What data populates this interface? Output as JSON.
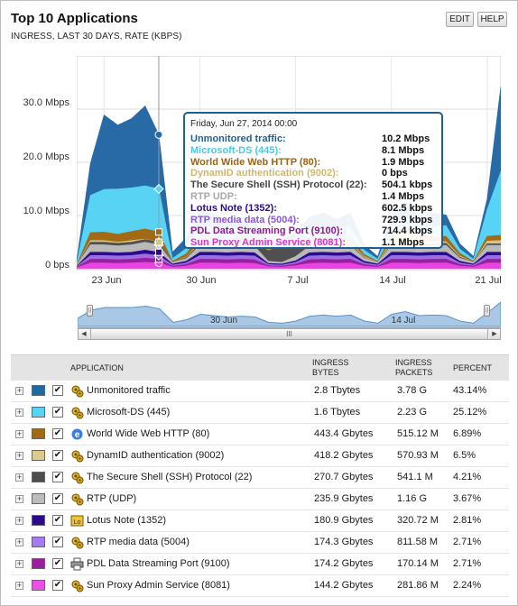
{
  "header": {
    "title": "Top 10 Applications",
    "subtitle": "INGRESS, LAST 30 DAYS, RATE (KBPS)",
    "edit_label": "EDIT",
    "help_label": "HELP"
  },
  "chart_data": {
    "type": "area",
    "stacked": true,
    "ylabel": "",
    "y_ticks": [
      "0 bps",
      "10.0 Mbps",
      "20.0 Mbps",
      "30.0 Mbps"
    ],
    "y_tick_values": [
      0,
      10,
      20,
      30
    ],
    "y_unit": "Mbps",
    "ylim": [
      0,
      40
    ],
    "x_ticks": [
      "23 Jun",
      "30 Jun",
      "7 Jul",
      "14 Jul",
      "21 Jul"
    ],
    "x_tick_days": [
      2,
      9,
      16,
      23,
      30
    ],
    "xlim_days": [
      0,
      31
    ],
    "grid": true,
    "x": [
      0,
      1,
      2,
      3,
      4,
      5,
      6,
      7,
      8,
      9,
      10,
      11,
      12,
      13,
      14,
      15,
      16,
      17,
      18,
      19,
      20,
      21,
      22,
      23,
      24,
      25,
      26,
      27,
      28,
      29,
      30,
      31
    ],
    "series": [
      {
        "name": "Sun Proxy Admin Service (8081)",
        "color": "#e844e0",
        "values": [
          0.2,
          1.1,
          1.1,
          1.0,
          1.1,
          1.2,
          1.1,
          0.3,
          0.5,
          1.1,
          1.1,
          1.0,
          1.1,
          1.0,
          0.4,
          0.3,
          0.6,
          1.0,
          1.1,
          1.0,
          1.1,
          0.5,
          0.3,
          1.1,
          1.1,
          1.0,
          1.1,
          1.1,
          0.5,
          0.3,
          1.1,
          1.1
        ]
      },
      {
        "name": "PDL Data Streaming Port (9100)",
        "color": "#9b1e9e",
        "values": [
          0.1,
          0.7,
          0.7,
          0.7,
          0.7,
          0.8,
          0.7,
          0.2,
          0.3,
          0.7,
          0.7,
          0.7,
          0.7,
          0.7,
          0.2,
          0.2,
          0.3,
          0.7,
          0.7,
          0.7,
          0.7,
          0.3,
          0.2,
          0.7,
          0.7,
          0.7,
          0.7,
          0.7,
          0.3,
          0.2,
          0.7,
          0.7
        ]
      },
      {
        "name": "RTP media data (5004)",
        "color": "#9c6ee0",
        "values": [
          0.1,
          0.7,
          0.7,
          0.7,
          0.7,
          0.8,
          0.7,
          0.2,
          0.3,
          0.7,
          0.7,
          0.7,
          0.7,
          0.7,
          0.2,
          0.2,
          0.3,
          0.7,
          0.7,
          0.7,
          0.7,
          0.3,
          0.2,
          0.7,
          0.7,
          0.7,
          0.7,
          0.7,
          0.3,
          0.2,
          0.7,
          0.7
        ]
      },
      {
        "name": "Lotus Note (1352)",
        "color": "#2c0a8c",
        "values": [
          0.1,
          0.6,
          0.6,
          0.6,
          0.6,
          0.7,
          0.6,
          0.2,
          0.3,
          0.6,
          0.6,
          0.6,
          0.6,
          0.6,
          0.2,
          0.2,
          0.3,
          0.6,
          0.6,
          0.6,
          0.6,
          0.3,
          0.2,
          0.6,
          0.6,
          0.6,
          0.6,
          0.6,
          0.3,
          0.2,
          0.6,
          0.6
        ]
      },
      {
        "name": "RTP UDP",
        "color": "#b9b9b9",
        "values": [
          0.2,
          1.4,
          1.4,
          1.3,
          1.4,
          1.5,
          1.4,
          0.3,
          0.5,
          1.3,
          1.3,
          1.2,
          1.3,
          1.2,
          0.4,
          0.3,
          0.8,
          1.2,
          1.3,
          1.2,
          1.3,
          0.6,
          0.3,
          1.3,
          1.3,
          1.2,
          1.3,
          1.3,
          0.6,
          0.3,
          1.3,
          1.3
        ]
      },
      {
        "name": "The Secure Shell (SSH) Protocol (22)",
        "color": "#505050",
        "values": [
          0.0,
          0.5,
          0.5,
          0.5,
          0.5,
          0.5,
          0.5,
          0.0,
          0.2,
          0.3,
          0.2,
          0.2,
          0.3,
          0.8,
          2.0,
          3.2,
          2.2,
          0.4,
          0.3,
          0.2,
          0.3,
          0.1,
          0.0,
          0.3,
          0.3,
          0.2,
          0.3,
          0.4,
          0.2,
          0.0,
          0.3,
          0.3
        ]
      },
      {
        "name": "DynamID authentication (9002)",
        "color": "#d9c47f",
        "values": [
          0.0,
          0.3,
          0.3,
          0.2,
          0.3,
          0.1,
          0.0,
          0.0,
          0.1,
          0.3,
          0.3,
          0.2,
          0.3,
          0.3,
          0.1,
          0.0,
          0.1,
          0.3,
          0.3,
          0.2,
          0.3,
          0.2,
          0.0,
          0.5,
          2.5,
          1.0,
          0.4,
          0.3,
          0.2,
          0.0,
          0.5,
          0.6
        ]
      },
      {
        "name": "World Wide Web HTTP (80)",
        "color": "#a26a13",
        "values": [
          0.0,
          1.5,
          1.6,
          1.5,
          1.7,
          1.9,
          1.9,
          0.2,
          0.6,
          1.0,
          0.9,
          0.8,
          0.9,
          0.8,
          0.3,
          0.2,
          0.5,
          0.9,
          1.0,
          0.9,
          1.0,
          0.4,
          0.2,
          0.8,
          0.9,
          0.8,
          0.9,
          1.0,
          0.5,
          0.2,
          0.9,
          1.0
        ]
      },
      {
        "name": "Microsoft-DS (445)",
        "color": "#58d3f3",
        "values": [
          0.3,
          7.0,
          8.0,
          8.5,
          8.2,
          8.1,
          8.1,
          0.5,
          1.0,
          2.0,
          2.0,
          1.7,
          1.8,
          1.5,
          0.5,
          0.4,
          0.8,
          1.8,
          2.0,
          1.8,
          2.0,
          0.8,
          0.4,
          2.0,
          2.0,
          1.8,
          2.0,
          2.0,
          0.8,
          0.4,
          5.0,
          12.0
        ]
      },
      {
        "name": "Unmonitored traffic",
        "color": "#276aa6",
        "values": [
          0.5,
          6.0,
          14.0,
          12.0,
          13.0,
          15.0,
          10.2,
          1.2,
          2.0,
          3.0,
          2.5,
          2.0,
          2.0,
          1.7,
          0.5,
          0.4,
          1.0,
          2.0,
          2.5,
          2.0,
          2.5,
          1.0,
          0.5,
          2.0,
          2.5,
          2.0,
          2.5,
          2.0,
          1.0,
          0.5,
          2.0,
          16.0
        ]
      }
    ],
    "tooltip": {
      "date": "Friday, Jun 27, 2014 00:00",
      "rows": [
        {
          "name": "Unmonitored traffic:",
          "value": "10.2 Mbps",
          "color": "#1f5f93"
        },
        {
          "name": "Microsoft-DS (445):",
          "value": "8.1 Mbps",
          "color": "#49c8ea"
        },
        {
          "name": "World Wide Web HTTP (80):",
          "value": "1.9 Mbps",
          "color": "#9b6412"
        },
        {
          "name": "DynamID authentication (9002):",
          "value": "0 bps",
          "color": "#ceb870"
        },
        {
          "name": "The Secure Shell (SSH) Protocol (22):",
          "value": "504.1 kbps",
          "color": "#444444"
        },
        {
          "name": "RTP UDP:",
          "value": "1.4 Mbps",
          "color": "#a9a9a9"
        },
        {
          "name": "Lotus Note (1352):",
          "value": "602.5 kbps",
          "color": "#2c0a8c"
        },
        {
          "name": "RTP media data (5004):",
          "value": "729.9 kbps",
          "color": "#8a59d6"
        },
        {
          "name": "PDL Data Streaming Port (9100):",
          "value": "714.4 kbps",
          "color": "#8e1b91"
        },
        {
          "name": "Sun Proxy Admin Service (8081):",
          "value": "1.1 Mbps",
          "color": "#d634d0"
        }
      ]
    },
    "tooltip_day": 6
  },
  "overview": {
    "labels": [
      "30 Jun",
      "14 Jul"
    ],
    "label_days": [
      9,
      23
    ],
    "values": [
      0.3,
      0.6,
      0.7,
      0.7,
      0.7,
      0.75,
      0.65,
      0.15,
      0.25,
      0.45,
      0.4,
      0.35,
      0.38,
      0.35,
      0.15,
      0.12,
      0.2,
      0.38,
      0.42,
      0.38,
      0.42,
      0.2,
      0.12,
      0.45,
      0.55,
      0.4,
      0.42,
      0.4,
      0.2,
      0.12,
      0.5,
      0.9
    ],
    "thumb_glyph": "III"
  },
  "table": {
    "headers": {
      "application": "APPLICATION",
      "bytes_1": "INGRESS",
      "bytes_2": "BYTES",
      "packets_1": "INGRESS",
      "packets_2": "PACKETS",
      "percent": "PERCENT"
    },
    "rows": [
      {
        "name": "Unmonitored traffic",
        "color": "#1f6aa3",
        "icon": "gears-icon",
        "bytes": "2.8 Tbytes",
        "packets": "3.78 G",
        "percent": "43.14%"
      },
      {
        "name": "Microsoft-DS (445)",
        "color": "#58d3f3",
        "icon": "gears-icon",
        "bytes": "1.6 Tbytes",
        "packets": "2.23 G",
        "percent": "25.12%"
      },
      {
        "name": "World Wide Web HTTP (80)",
        "color": "#a26a13",
        "icon": "web-browser-icon",
        "bytes": "443.4 Gbytes",
        "packets": "515.12 M",
        "percent": "6.89%"
      },
      {
        "name": "DynamID authentication (9002)",
        "color": "#dccb8c",
        "icon": "gears-icon",
        "bytes": "418.2 Gbytes",
        "packets": "570.93 M",
        "percent": "6.5%"
      },
      {
        "name": "The Secure Shell (SSH) Protocol (22)",
        "color": "#4d4d4d",
        "icon": "gears-icon",
        "bytes": "270.7 Gbytes",
        "packets": "541.1 M",
        "percent": "4.21%"
      },
      {
        "name": "RTP (UDP)",
        "color": "#bcbcbc",
        "icon": "gears-icon",
        "bytes": "235.9 Gbytes",
        "packets": "1.16 G",
        "percent": "3.67%"
      },
      {
        "name": "Lotus Note (1352)",
        "color": "#2c0a8c",
        "icon": "lotus-notes-icon",
        "bytes": "180.9 Gbytes",
        "packets": "320.72 M",
        "percent": "2.81%"
      },
      {
        "name": "RTP media data (5004)",
        "color": "#a87af0",
        "icon": "gears-icon",
        "bytes": "174.3 Gbytes",
        "packets": "811.58 M",
        "percent": "2.71%"
      },
      {
        "name": "PDL Data Streaming Port (9100)",
        "color": "#9b1e9e",
        "icon": "printer-icon",
        "bytes": "174.2 Gbytes",
        "packets": "170.14 M",
        "percent": "2.71%"
      },
      {
        "name": "Sun Proxy Admin Service (8081)",
        "color": "#ea4fe6",
        "icon": "gears-icon",
        "bytes": "144.2 Gbytes",
        "packets": "281.86 M",
        "percent": "2.24%"
      }
    ],
    "checkbox_glyph": "✔",
    "expand_glyph": "+"
  }
}
